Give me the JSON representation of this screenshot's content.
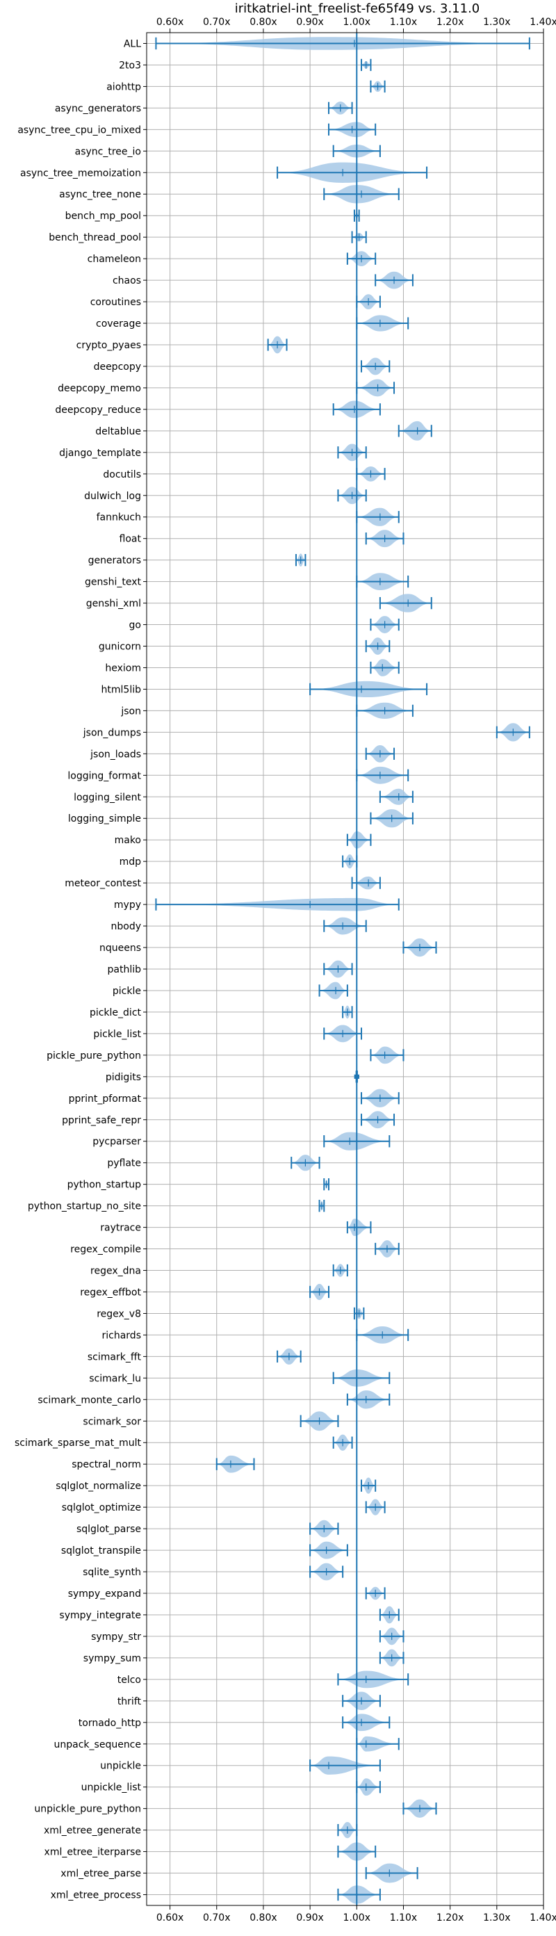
{
  "chart_data": {
    "type": "violin",
    "orientation": "horizontal",
    "title": "iritkatriel-int_freelist-fe65f49 vs. 3.11.0",
    "xlabel": "",
    "ylabel": "",
    "xlim": [
      0.55,
      1.4
    ],
    "xticks": [
      0.6,
      0.7,
      0.8,
      0.9,
      1.0,
      1.1,
      1.2,
      1.3,
      1.4
    ],
    "xtick_labels": [
      "0.60x",
      "0.70x",
      "0.80x",
      "0.90x",
      "1.00x",
      "1.10x",
      "1.20x",
      "1.30x",
      "1.40x"
    ],
    "tick_positions": [
      "top",
      "bottom"
    ],
    "reference_line": 1.0,
    "grid": true,
    "color": "#1f77b4",
    "fill_color": "#a6c8e6",
    "benchmarks": [
      {
        "name": "ALL",
        "min": 0.57,
        "max": 1.37,
        "center": 0.94,
        "width": 0.6,
        "median": 0.995
      },
      {
        "name": "2to3",
        "min": 1.01,
        "max": 1.03,
        "center": 1.02,
        "width": 0.35,
        "median": 1.02
      },
      {
        "name": "aiohttp",
        "min": 1.03,
        "max": 1.06,
        "center": 1.045,
        "width": 0.5,
        "median": 1.045
      },
      {
        "name": "async_generators",
        "min": 0.94,
        "max": 0.99,
        "center": 0.965,
        "width": 0.6,
        "median": 0.965
      },
      {
        "name": "async_tree_cpu_io_mixed",
        "min": 0.94,
        "max": 1.04,
        "center": 1.0,
        "width": 0.7,
        "median": 0.99
      },
      {
        "name": "async_tree_io",
        "min": 0.95,
        "max": 1.05,
        "center": 1.0,
        "width": 0.6,
        "median": 1.0
      },
      {
        "name": "async_tree_memoization",
        "min": 0.83,
        "max": 1.15,
        "center": 0.97,
        "width": 0.95,
        "median": 0.97
      },
      {
        "name": "async_tree_none",
        "min": 0.93,
        "max": 1.09,
        "center": 1.0,
        "width": 0.85,
        "median": 1.01
      },
      {
        "name": "bench_mp_pool",
        "min": 0.995,
        "max": 1.005,
        "center": 1.0,
        "width": 0.3,
        "median": 1.0
      },
      {
        "name": "bench_thread_pool",
        "min": 0.99,
        "max": 1.02,
        "center": 1.005,
        "width": 0.4,
        "median": 1.005
      },
      {
        "name": "chameleon",
        "min": 0.98,
        "max": 1.04,
        "center": 1.01,
        "width": 0.7,
        "median": 1.01
      },
      {
        "name": "chaos",
        "min": 1.04,
        "max": 1.12,
        "center": 1.08,
        "width": 0.8,
        "median": 1.08
      },
      {
        "name": "coroutines",
        "min": 1.0,
        "max": 1.05,
        "center": 1.025,
        "width": 0.7,
        "median": 1.025
      },
      {
        "name": "coverage",
        "min": 1.0,
        "max": 1.11,
        "center": 1.05,
        "width": 0.75,
        "median": 1.05
      },
      {
        "name": "crypto_pyaes",
        "min": 0.81,
        "max": 0.85,
        "center": 0.83,
        "width": 0.8,
        "median": 0.83
      },
      {
        "name": "deepcopy",
        "min": 1.01,
        "max": 1.07,
        "center": 1.04,
        "width": 0.8,
        "median": 1.04
      },
      {
        "name": "deepcopy_memo",
        "min": 1.0,
        "max": 1.08,
        "center": 1.045,
        "width": 0.8,
        "median": 1.045
      },
      {
        "name": "deepcopy_reduce",
        "min": 0.95,
        "max": 1.05,
        "center": 0.995,
        "width": 0.8,
        "median": 0.995
      },
      {
        "name": "deltablue",
        "min": 1.09,
        "max": 1.16,
        "center": 1.13,
        "width": 0.9,
        "median": 1.13
      },
      {
        "name": "django_template",
        "min": 0.96,
        "max": 1.02,
        "center": 0.99,
        "width": 0.8,
        "median": 0.99
      },
      {
        "name": "docutils",
        "min": 1.0,
        "max": 1.06,
        "center": 1.03,
        "width": 0.7,
        "median": 1.03
      },
      {
        "name": "dulwich_log",
        "min": 0.96,
        "max": 1.02,
        "center": 0.99,
        "width": 0.8,
        "median": 0.99
      },
      {
        "name": "fannkuch",
        "min": 1.0,
        "max": 1.09,
        "center": 1.05,
        "width": 0.85,
        "median": 1.05
      },
      {
        "name": "float",
        "min": 1.02,
        "max": 1.1,
        "center": 1.06,
        "width": 0.8,
        "median": 1.06
      },
      {
        "name": "generators",
        "min": 0.87,
        "max": 0.89,
        "center": 0.88,
        "width": 0.6,
        "median": 0.88
      },
      {
        "name": "genshi_text",
        "min": 1.0,
        "max": 1.11,
        "center": 1.05,
        "width": 0.8,
        "median": 1.05
      },
      {
        "name": "genshi_xml",
        "min": 1.05,
        "max": 1.16,
        "center": 1.11,
        "width": 0.85,
        "median": 1.11
      },
      {
        "name": "go",
        "min": 1.03,
        "max": 1.09,
        "center": 1.06,
        "width": 0.8,
        "median": 1.06
      },
      {
        "name": "gunicorn",
        "min": 1.02,
        "max": 1.07,
        "center": 1.045,
        "width": 0.8,
        "median": 1.045
      },
      {
        "name": "hexiom",
        "min": 1.03,
        "max": 1.09,
        "center": 1.055,
        "width": 0.8,
        "median": 1.055
      },
      {
        "name": "html5lib",
        "min": 0.9,
        "max": 1.15,
        "center": 1.02,
        "width": 0.75,
        "median": 1.01
      },
      {
        "name": "json",
        "min": 1.0,
        "max": 1.12,
        "center": 1.06,
        "width": 0.75,
        "median": 1.06
      },
      {
        "name": "json_dumps",
        "min": 1.3,
        "max": 1.37,
        "center": 1.335,
        "width": 0.85,
        "median": 1.335
      },
      {
        "name": "json_loads",
        "min": 1.02,
        "max": 1.08,
        "center": 1.05,
        "width": 0.8,
        "median": 1.05
      },
      {
        "name": "logging_format",
        "min": 1.0,
        "max": 1.11,
        "center": 1.05,
        "width": 0.8,
        "median": 1.05
      },
      {
        "name": "logging_silent",
        "min": 1.05,
        "max": 1.12,
        "center": 1.09,
        "width": 0.75,
        "median": 1.09
      },
      {
        "name": "logging_simple",
        "min": 1.03,
        "max": 1.12,
        "center": 1.075,
        "width": 0.85,
        "median": 1.075
      },
      {
        "name": "mako",
        "min": 0.98,
        "max": 1.03,
        "center": 1.0,
        "width": 0.8,
        "median": 1.0
      },
      {
        "name": "mdp",
        "min": 0.97,
        "max": 1.0,
        "center": 0.985,
        "width": 0.65,
        "median": 0.985
      },
      {
        "name": "meteor_contest",
        "min": 0.99,
        "max": 1.05,
        "center": 1.025,
        "width": 0.6,
        "median": 1.025
      },
      {
        "name": "mypy",
        "min": 0.57,
        "max": 1.09,
        "center": 1.0,
        "width": 0.6,
        "median": 0.9
      },
      {
        "name": "nbody",
        "min": 0.93,
        "max": 1.02,
        "center": 0.97,
        "width": 0.8,
        "median": 0.97
      },
      {
        "name": "nqueens",
        "min": 1.1,
        "max": 1.17,
        "center": 1.135,
        "width": 0.85,
        "median": 1.135
      },
      {
        "name": "pathlib",
        "min": 0.93,
        "max": 0.99,
        "center": 0.96,
        "width": 0.8,
        "median": 0.96
      },
      {
        "name": "pickle",
        "min": 0.92,
        "max": 0.98,
        "center": 0.955,
        "width": 0.8,
        "median": 0.955
      },
      {
        "name": "pickle_dict",
        "min": 0.97,
        "max": 0.99,
        "center": 0.98,
        "width": 0.6,
        "median": 0.98
      },
      {
        "name": "pickle_list",
        "min": 0.93,
        "max": 1.01,
        "center": 0.97,
        "width": 0.8,
        "median": 0.97
      },
      {
        "name": "pickle_pure_python",
        "min": 1.03,
        "max": 1.1,
        "center": 1.06,
        "width": 0.8,
        "median": 1.06
      },
      {
        "name": "pidigits",
        "min": 0.999,
        "max": 1.001,
        "center": 1.0,
        "width": 0.2,
        "median": 1.0
      },
      {
        "name": "pprint_pformat",
        "min": 1.01,
        "max": 1.09,
        "center": 1.05,
        "width": 0.85,
        "median": 1.05
      },
      {
        "name": "pprint_safe_repr",
        "min": 1.01,
        "max": 1.08,
        "center": 1.045,
        "width": 0.8,
        "median": 1.045
      },
      {
        "name": "pycparser",
        "min": 0.93,
        "max": 1.07,
        "center": 0.985,
        "width": 0.85,
        "median": 0.985
      },
      {
        "name": "pyflate",
        "min": 0.86,
        "max": 0.92,
        "center": 0.89,
        "width": 0.75,
        "median": 0.89
      },
      {
        "name": "python_startup",
        "min": 0.93,
        "max": 0.94,
        "center": 0.935,
        "width": 0.4,
        "median": 0.935
      },
      {
        "name": "python_startup_no_site",
        "min": 0.92,
        "max": 0.93,
        "center": 0.925,
        "width": 0.45,
        "median": 0.925
      },
      {
        "name": "raytrace",
        "min": 0.98,
        "max": 1.03,
        "center": 0.995,
        "width": 0.8,
        "median": 0.995
      },
      {
        "name": "regex_compile",
        "min": 1.04,
        "max": 1.09,
        "center": 1.065,
        "width": 0.8,
        "median": 1.065
      },
      {
        "name": "regex_dna",
        "min": 0.95,
        "max": 0.98,
        "center": 0.965,
        "width": 0.6,
        "median": 0.965
      },
      {
        "name": "regex_effbot",
        "min": 0.9,
        "max": 0.94,
        "center": 0.92,
        "width": 0.75,
        "median": 0.92
      },
      {
        "name": "regex_v8",
        "min": 0.995,
        "max": 1.015,
        "center": 1.005,
        "width": 0.5,
        "median": 1.005
      },
      {
        "name": "richards",
        "min": 1.0,
        "max": 1.11,
        "center": 1.055,
        "width": 0.8,
        "median": 1.055
      },
      {
        "name": "scimark_fft",
        "min": 0.83,
        "max": 0.88,
        "center": 0.855,
        "width": 0.75,
        "median": 0.855
      },
      {
        "name": "scimark_lu",
        "min": 0.95,
        "max": 1.07,
        "center": 1.0,
        "width": 0.8,
        "median": 1.0
      },
      {
        "name": "scimark_monte_carlo",
        "min": 0.98,
        "max": 1.07,
        "center": 1.02,
        "width": 0.85,
        "median": 1.02
      },
      {
        "name": "scimark_sor",
        "min": 0.88,
        "max": 0.96,
        "center": 0.92,
        "width": 0.9,
        "median": 0.92
      },
      {
        "name": "scimark_sparse_mat_mult",
        "min": 0.95,
        "max": 0.99,
        "center": 0.97,
        "width": 0.75,
        "median": 0.97
      },
      {
        "name": "spectral_norm",
        "min": 0.7,
        "max": 0.78,
        "center": 0.73,
        "width": 0.8,
        "median": 0.73
      },
      {
        "name": "sqlglot_normalize",
        "min": 1.01,
        "max": 1.04,
        "center": 1.025,
        "width": 0.75,
        "median": 1.025
      },
      {
        "name": "sqlglot_optimize",
        "min": 1.02,
        "max": 1.06,
        "center": 1.04,
        "width": 0.75,
        "median": 1.04
      },
      {
        "name": "sqlglot_parse",
        "min": 0.9,
        "max": 0.96,
        "center": 0.93,
        "width": 0.8,
        "median": 0.93
      },
      {
        "name": "sqlglot_transpile",
        "min": 0.9,
        "max": 0.98,
        "center": 0.935,
        "width": 0.8,
        "median": 0.935
      },
      {
        "name": "sqlite_synth",
        "min": 0.9,
        "max": 0.97,
        "center": 0.935,
        "width": 0.8,
        "median": 0.935
      },
      {
        "name": "sympy_expand",
        "min": 1.02,
        "max": 1.06,
        "center": 1.04,
        "width": 0.6,
        "median": 1.04
      },
      {
        "name": "sympy_integrate",
        "min": 1.05,
        "max": 1.09,
        "center": 1.07,
        "width": 0.8,
        "median": 1.07
      },
      {
        "name": "sympy_str",
        "min": 1.05,
        "max": 1.1,
        "center": 1.075,
        "width": 0.8,
        "median": 1.075
      },
      {
        "name": "sympy_sum",
        "min": 1.05,
        "max": 1.1,
        "center": 1.075,
        "width": 0.8,
        "median": 1.075
      },
      {
        "name": "telco",
        "min": 0.96,
        "max": 1.11,
        "center": 1.02,
        "width": 0.8,
        "median": 1.02
      },
      {
        "name": "thrift",
        "min": 0.97,
        "max": 1.05,
        "center": 1.01,
        "width": 0.85,
        "median": 1.01
      },
      {
        "name": "tornado_http",
        "min": 0.97,
        "max": 1.07,
        "center": 1.01,
        "width": 0.8,
        "median": 1.01
      },
      {
        "name": "unpack_sequence",
        "min": 1.0,
        "max": 1.09,
        "center": 1.02,
        "width": 0.7,
        "median": 1.02
      },
      {
        "name": "unpickle",
        "min": 0.9,
        "max": 1.05,
        "center": 0.94,
        "width": 0.85,
        "median": 0.94
      },
      {
        "name": "unpickle_list",
        "min": 1.0,
        "max": 1.05,
        "center": 1.02,
        "width": 0.8,
        "median": 1.02
      },
      {
        "name": "unpickle_pure_python",
        "min": 1.1,
        "max": 1.17,
        "center": 1.135,
        "width": 0.85,
        "median": 1.135
      },
      {
        "name": "xml_etree_generate",
        "min": 0.96,
        "max": 1.0,
        "center": 0.98,
        "width": 0.75,
        "median": 0.98
      },
      {
        "name": "xml_etree_iterparse",
        "min": 0.96,
        "max": 1.04,
        "center": 1.0,
        "width": 0.85,
        "median": 1.0
      },
      {
        "name": "xml_etree_parse",
        "min": 1.02,
        "max": 1.13,
        "center": 1.07,
        "width": 0.9,
        "median": 1.07
      },
      {
        "name": "xml_etree_process",
        "min": 0.96,
        "max": 1.05,
        "center": 1.0,
        "width": 0.85,
        "median": 1.0
      }
    ]
  }
}
